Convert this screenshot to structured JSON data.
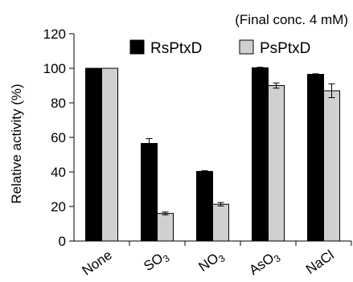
{
  "chart_data": {
    "type": "bar",
    "note": "(Final conc. 4 mM)",
    "ylabel": "Relative activity (%)",
    "ylim": [
      0,
      120
    ],
    "yticks": [
      0,
      20,
      40,
      60,
      80,
      100,
      120
    ],
    "categories": [
      {
        "label": "None",
        "sub": ""
      },
      {
        "label": "SO",
        "sub": "3"
      },
      {
        "label": "NO",
        "sub": "3"
      },
      {
        "label": "AsO",
        "sub": "3"
      },
      {
        "label": "NaCl",
        "sub": ""
      }
    ],
    "series": [
      {
        "name": "RsPtxD",
        "color": "#000000",
        "values": [
          100,
          56.5,
          40.3,
          100.3,
          96.5
        ],
        "errors": [
          0,
          2.8,
          0.4,
          0.3,
          0.3
        ]
      },
      {
        "name": "PsPtxD",
        "color": "#d0d0d0",
        "values": [
          100,
          16.0,
          21.3,
          90.0,
          87.0
        ],
        "errors": [
          0,
          0.8,
          1.0,
          1.5,
          4.0
        ]
      }
    ],
    "grid": false,
    "legend_position": "top-right"
  }
}
